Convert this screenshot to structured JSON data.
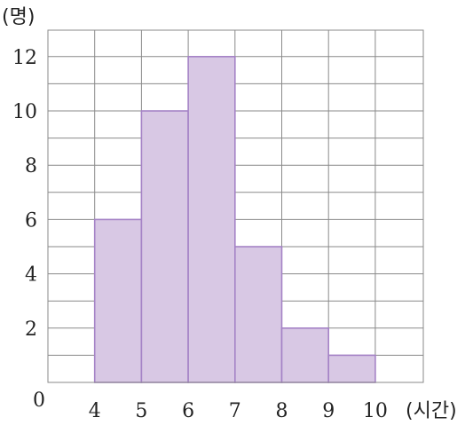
{
  "chart_data": {
    "type": "histogram",
    "title": "",
    "ylabel": "(명)",
    "xlabel": "(시간)",
    "x_ticks": [
      "4",
      "5",
      "6",
      "7",
      "8",
      "9",
      "10"
    ],
    "y_ticks": [
      "2",
      "4",
      "6",
      "8",
      "10",
      "12"
    ],
    "origin_label": "0",
    "bins": [
      {
        "from": 4,
        "to": 5,
        "value": 6
      },
      {
        "from": 5,
        "to": 6,
        "value": 10
      },
      {
        "from": 6,
        "to": 7,
        "value": 12
      },
      {
        "from": 7,
        "to": 8,
        "value": 5
      },
      {
        "from": 8,
        "to": 9,
        "value": 2
      },
      {
        "from": 9,
        "to": 10,
        "value": 1
      }
    ],
    "xlim": [
      3,
      11
    ],
    "ylim": [
      0,
      13
    ],
    "grid": true,
    "colors": {
      "bar_fill": "#d8c8e4",
      "bar_stroke": "#a583c6",
      "grid": "#8a8a8a"
    }
  }
}
